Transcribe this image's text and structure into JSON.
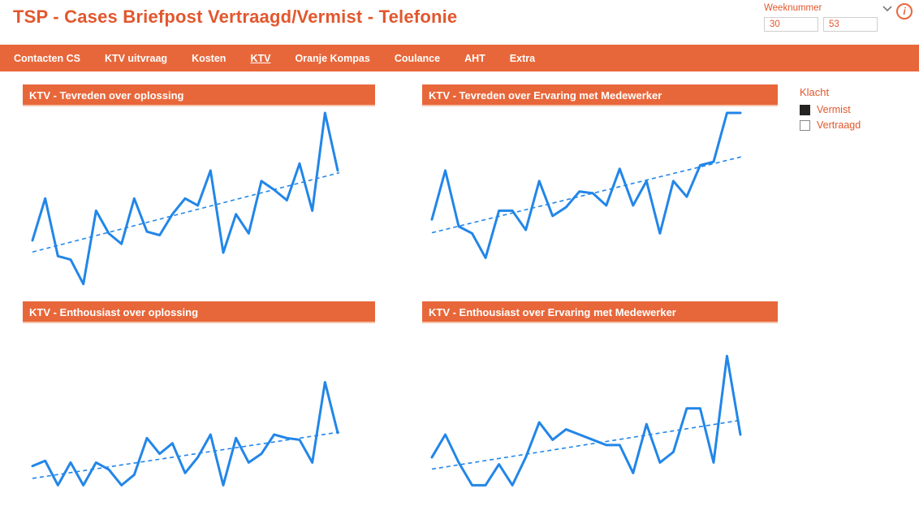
{
  "header": {
    "title": "TSP - Cases Briefpost Vertraagd/Vermist - Telefonie",
    "filter": {
      "label": "Weeknummer",
      "from": "30",
      "to": "53",
      "chevron_icon": "chevron-down-icon",
      "info_icon": "info-icon",
      "info_glyph": "i"
    }
  },
  "nav": {
    "tabs": [
      {
        "label": "Contacten CS",
        "active": false
      },
      {
        "label": "KTV uitvraag",
        "active": false
      },
      {
        "label": "Kosten",
        "active": false
      },
      {
        "label": "KTV",
        "active": true
      },
      {
        "label": "Oranje Kompas",
        "active": false
      },
      {
        "label": "Coulance",
        "active": false
      },
      {
        "label": "AHT",
        "active": false
      },
      {
        "label": "Extra",
        "active": false
      }
    ]
  },
  "legend": {
    "title": "Klacht",
    "items": [
      {
        "label": "Vermist",
        "checked": true
      },
      {
        "label": "Vertraagd",
        "checked": false
      }
    ]
  },
  "colors": {
    "accent_orange": "#e8673a",
    "title_orange": "#e2572e",
    "line_blue": "#2286e8",
    "header_border": "#f4c5ac",
    "checkbox_filled": "#252423"
  },
  "chart_data": [
    {
      "type": "line",
      "title": "KTV - Tevreden over oplossing",
      "x_note": "weeks 30-53, axis labels not shown",
      "values": [
        27,
        51,
        18,
        16,
        2,
        44,
        31,
        25,
        51,
        32,
        30,
        42,
        51,
        47,
        67,
        20,
        42,
        31,
        61,
        56,
        50,
        71,
        44,
        100,
        67
      ],
      "trendline": true,
      "ylim": [
        0,
        100
      ],
      "grid": false,
      "legend_position": "none"
    },
    {
      "type": "line",
      "title": "KTV - Tevreden over Ervaring met Medewerker",
      "x_note": "weeks 30-53, axis labels not shown",
      "values": [
        39,
        67,
        35,
        31,
        17,
        44,
        44,
        33,
        61,
        41,
        46,
        55,
        54,
        47,
        68,
        47,
        61,
        31,
        61,
        52,
        70,
        72,
        100,
        100
      ],
      "trendline": true,
      "ylim": [
        0,
        100
      ],
      "grid": false,
      "legend_position": "none"
    },
    {
      "type": "line",
      "title": "KTV - Enthousiast over oplossing",
      "x_note": "weeks 30-53, axis labels not shown",
      "values": [
        22,
        25,
        11,
        24,
        11,
        24,
        20,
        11,
        17,
        38,
        29,
        35,
        18,
        27,
        40,
        11,
        38,
        24,
        29,
        40,
        38,
        37,
        24,
        70,
        41
      ],
      "trendline": true,
      "ylim": [
        0,
        100
      ],
      "grid": false,
      "legend_position": "none"
    },
    {
      "type": "line",
      "title": "KTV - Enthousiast over Ervaring met Medewerker",
      "x_note": "weeks 30-53, axis labels not shown",
      "values": [
        27,
        40,
        24,
        11,
        11,
        23,
        11,
        27,
        47,
        37,
        43,
        40,
        37,
        34,
        34,
        18,
        46,
        24,
        30,
        55,
        55,
        24,
        85,
        40
      ],
      "trendline": true,
      "ylim": [
        0,
        100
      ],
      "grid": false,
      "legend_position": "none"
    }
  ]
}
